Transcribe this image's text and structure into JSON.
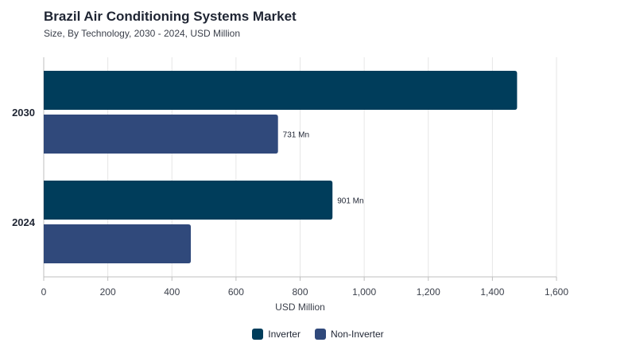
{
  "colors": {
    "inverter": "#003d5b",
    "non_inverter": "#30497b",
    "grid": "#e6e6e6",
    "axis": "#bfbfbf",
    "text": "#1f2533"
  },
  "chart_data": {
    "type": "bar",
    "orientation": "horizontal",
    "title": "Brazil Air Conditioning Systems Market",
    "subtitle": "Size, By Technology, 2030 - 2024, USD Million",
    "xlabel": "USD Million",
    "ylabel": "",
    "xlim": [
      0,
      1600
    ],
    "xticks": [
      0,
      200,
      400,
      600,
      800,
      1000,
      1200,
      1400,
      1600
    ],
    "xtick_labels": [
      "0",
      "200",
      "400",
      "600",
      "800",
      "1,000",
      "1,200",
      "1,400",
      "1,600"
    ],
    "grid": true,
    "legend_position": "bottom-center",
    "categories": [
      "2030",
      "2024"
    ],
    "series": [
      {
        "name": "Inverter",
        "color": "#003d5b",
        "values": [
          1477,
          901
        ],
        "data_labels": [
          "",
          "901 Mn"
        ]
      },
      {
        "name": "Non-Inverter",
        "color": "#30497b",
        "values": [
          731,
          459
        ],
        "data_labels": [
          "731 Mn",
          ""
        ]
      }
    ]
  }
}
